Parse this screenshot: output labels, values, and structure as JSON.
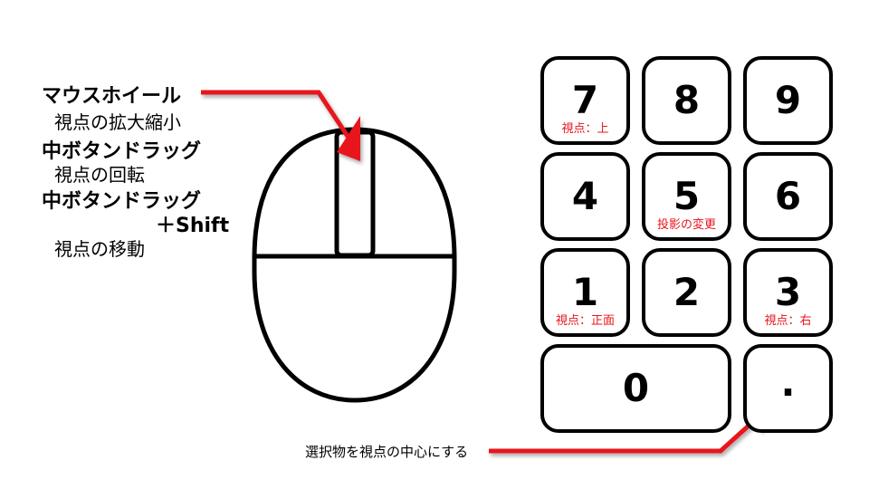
{
  "mouse_labels": {
    "wheel_title": "マウスホイール",
    "wheel_desc": "視点の拡大縮小",
    "middle_drag_title": "中ボタンドラッグ",
    "middle_drag_desc": "視点の回転",
    "middle_drag_shift_title": "中ボタンドラッグ",
    "shift_suffix": "＋Shift",
    "middle_drag_shift_desc": "視点の移動"
  },
  "numpad": {
    "keys": [
      {
        "id": "7",
        "label": "7",
        "action": "視点：上"
      },
      {
        "id": "8",
        "label": "8",
        "action": ""
      },
      {
        "id": "9",
        "label": "9",
        "action": ""
      },
      {
        "id": "4",
        "label": "4",
        "action": ""
      },
      {
        "id": "5",
        "label": "5",
        "action": "投影の変更"
      },
      {
        "id": "6",
        "label": "6",
        "action": ""
      },
      {
        "id": "1",
        "label": "1",
        "action": "視点：正面"
      },
      {
        "id": "2",
        "label": "2",
        "action": ""
      },
      {
        "id": "3",
        "label": "3",
        "action": "視点：右"
      },
      {
        "id": "0",
        "label": "0",
        "action": ""
      },
      {
        "id": "dot",
        "label": ".",
        "action": ""
      }
    ],
    "dot_caption": "選択物を視点の中心にする"
  },
  "colors": {
    "arrow": "#e8141b",
    "outline": "#000000",
    "action_text": "#e8141b"
  }
}
